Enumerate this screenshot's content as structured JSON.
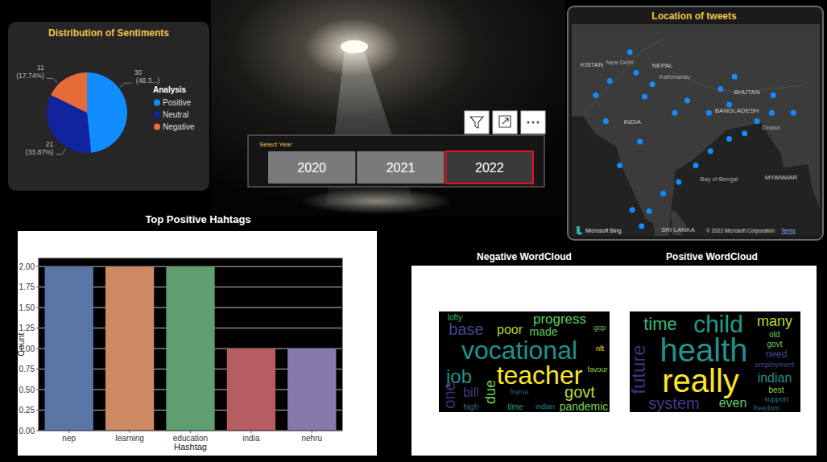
{
  "chart_data": [
    {
      "type": "pie",
      "title": "Distribution of Sentiments",
      "legend_title": "Analysis",
      "categories": [
        "Positive",
        "Neutral",
        "Negative"
      ],
      "values": [
        30,
        21,
        11
      ],
      "value_labels": [
        "30 (48.3...)",
        "21 (33.87%)",
        "11 (17.74%)"
      ],
      "colors": [
        "#118DFF",
        "#12239E",
        "#E66C37"
      ],
      "legend": "right",
      "data_labels": true
    },
    {
      "type": "bar",
      "title": "Top Positive Hahtags",
      "x_label": "Hashtag",
      "y_label": "Count",
      "categories": [
        "nep",
        "learning",
        "education",
        "india",
        "nehru"
      ],
      "values": [
        2,
        2,
        2,
        1,
        1
      ],
      "colors": [
        "#5975A4",
        "#CC8963",
        "#5F9E6E",
        "#B55D60",
        "#857AAB"
      ],
      "ylim": [
        0,
        2.1
      ],
      "yticks": [
        {
          "value": 0,
          "label": "0.00"
        },
        0.25,
        {
          "value": 0.5,
          "label": "0.50"
        },
        0.75,
        {
          "value": 1,
          "label": "1.00"
        },
        1.25,
        {
          "value": 1.5,
          "label": "1.50"
        },
        1.75,
        {
          "value": 2,
          "label": "2.00"
        }
      ],
      "grid": true
    }
  ],
  "slicer": {
    "title": "Select Year",
    "options": [
      "2020",
      "2021",
      "2022"
    ],
    "selected": "2022"
  },
  "map": {
    "title": "Location of tweets",
    "lon_range": [
      67,
      99
    ],
    "lat_range": [
      6,
      37
    ],
    "points": [
      {
        "lon": 71.9,
        "lat": 28.7
      },
      {
        "lon": 74.5,
        "lat": 32.9
      },
      {
        "lon": 75.3,
        "lat": 29.9
      },
      {
        "lon": 71.4,
        "lat": 22.8
      },
      {
        "lon": 73.2,
        "lat": 16.3
      },
      {
        "lon": 75.8,
        "lat": 19.8
      },
      {
        "lon": 76.4,
        "lat": 26.4
      },
      {
        "lon": 80.3,
        "lat": 24.0
      },
      {
        "lon": 84.7,
        "lat": 24.0
      },
      {
        "lon": 86.2,
        "lat": 27.5
      },
      {
        "lon": 88.0,
        "lat": 29.3
      },
      {
        "lon": 87.3,
        "lat": 25.2
      },
      {
        "lon": 92.8,
        "lat": 24.0
      },
      {
        "lon": 90.9,
        "lat": 22.8
      },
      {
        "lon": 89.3,
        "lat": 21.0
      },
      {
        "lon": 87.3,
        "lat": 20.2
      },
      {
        "lon": 84.9,
        "lat": 18.4
      },
      {
        "lon": 83.0,
        "lat": 16.3
      },
      {
        "lon": 80.8,
        "lat": 13.9
      },
      {
        "lon": 78.8,
        "lat": 12.2
      },
      {
        "lon": 77.0,
        "lat": 9.6
      },
      {
        "lon": 76.0,
        "lat": 7.4
      },
      {
        "lon": 74.8,
        "lat": 9.8
      },
      {
        "lon": 77.4,
        "lat": 28.2
      },
      {
        "lon": 81.9,
        "lat": 25.8
      },
      {
        "lon": 70.1,
        "lat": 26.6
      },
      {
        "lon": 93.0,
        "lat": 26.6
      },
      {
        "lon": 95.6,
        "lat": 24.0
      }
    ],
    "labels": [
      {
        "text": "KISTAN",
        "lon": 69.6,
        "lat": 30.8
      },
      {
        "text": "New Delhi",
        "lon": 73.2,
        "lat": 31.1
      },
      {
        "text": "NEPAL",
        "lon": 78.7,
        "lat": 30.6
      },
      {
        "text": "Kathmandu",
        "lon": 80.3,
        "lat": 29.0
      },
      {
        "text": "BHUTAN",
        "lon": 89.6,
        "lat": 26.7
      },
      {
        "text": "BANGLADESH",
        "lon": 88.3,
        "lat": 24.0
      },
      {
        "text": "Dhaka",
        "lon": 92.7,
        "lat": 21.6
      },
      {
        "text": "INDIA",
        "lon": 74.8,
        "lat": 22.4
      },
      {
        "text": "MYANMAR",
        "lon": 94.0,
        "lat": 14.3
      },
      {
        "text": "Bay of Bengal",
        "lon": 86.0,
        "lat": 14.0
      },
      {
        "text": "SRI LANKA",
        "lon": 80.7,
        "lat": 6.6
      }
    ],
    "provider": "Microsoft Bing",
    "copyright": "© 2022 Microsoft Corporation",
    "terms": "Terms"
  },
  "wordclouds": [
    {
      "title": "Negative WordCloud",
      "words": [
        {
          "text": "vocational",
          "weight": 32,
          "color": "#21918c"
        },
        {
          "text": "teacher",
          "weight": 32,
          "color": "#fde725"
        },
        {
          "text": "job",
          "weight": 24,
          "color": "#21918c"
        },
        {
          "text": "govt",
          "weight": 20,
          "color": "#b5de2b"
        },
        {
          "text": "progress",
          "weight": 17,
          "color": "#5ec962"
        },
        {
          "text": "base",
          "weight": 20,
          "color": "#3e4989"
        },
        {
          "text": "poor",
          "weight": 16,
          "color": "#addc30"
        },
        {
          "text": "made",
          "weight": 14,
          "color": "#5ec962"
        },
        {
          "text": "bill",
          "weight": 16,
          "color": "#443983"
        },
        {
          "text": "due",
          "weight": 18,
          "color": "#6ece58"
        },
        {
          "text": "one",
          "weight": 20,
          "color": "#472d7b"
        },
        {
          "text": "pandemic",
          "weight": 14,
          "color": "#7ad151"
        },
        {
          "text": "indian",
          "weight": 9,
          "color": "#26828e"
        },
        {
          "text": "lofty",
          "weight": 10,
          "color": "#35b779"
        },
        {
          "text": "high",
          "weight": 10,
          "color": "#31688e"
        },
        {
          "text": "time",
          "weight": 10,
          "color": "#1f9e89"
        },
        {
          "text": "frame",
          "weight": 9,
          "color": "#3b528b"
        },
        {
          "text": "favour",
          "weight": 9,
          "color": "#90d743"
        },
        {
          "text": "nft",
          "weight": 9,
          "color": "#fde725"
        },
        {
          "text": "gop",
          "weight": 9,
          "color": "#5ec962"
        }
      ]
    },
    {
      "title": "Positive WordCloud",
      "words": [
        {
          "text": "health",
          "weight": 40,
          "color": "#21918c"
        },
        {
          "text": "really",
          "weight": 40,
          "color": "#fde725"
        },
        {
          "text": "child",
          "weight": 30,
          "color": "#1f9e89"
        },
        {
          "text": "time",
          "weight": 22,
          "color": "#35b779"
        },
        {
          "text": "many",
          "weight": 18,
          "color": "#b5de2b"
        },
        {
          "text": "old",
          "weight": 10,
          "color": "#6ece58"
        },
        {
          "text": "govt",
          "weight": 10,
          "color": "#5ec962"
        },
        {
          "text": "future",
          "weight": 24,
          "color": "#472d7b"
        },
        {
          "text": "need",
          "weight": 12,
          "color": "#3e4989"
        },
        {
          "text": "employment",
          "weight": 9,
          "color": "#3b528b"
        },
        {
          "text": "indian",
          "weight": 16,
          "color": "#21918c"
        },
        {
          "text": "best",
          "weight": 10,
          "color": "#90d743"
        },
        {
          "text": "system",
          "weight": 20,
          "color": "#443983"
        },
        {
          "text": "even",
          "weight": 16,
          "color": "#5ec962"
        },
        {
          "text": "support",
          "weight": 9,
          "color": "#2c728e"
        },
        {
          "text": "freedom",
          "weight": 9,
          "color": "#31688e"
        }
      ]
    }
  ]
}
